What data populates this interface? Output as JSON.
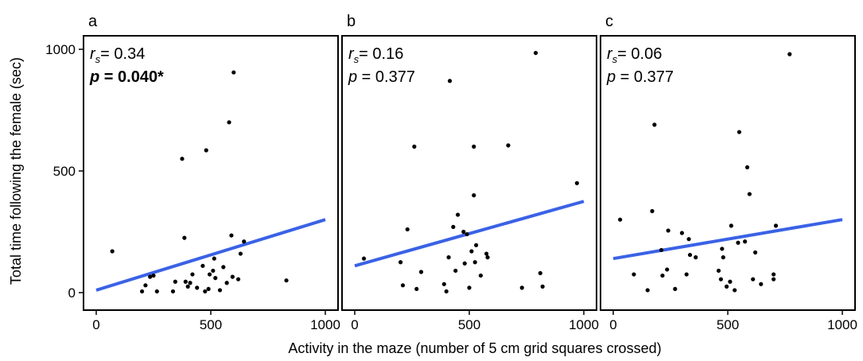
{
  "figure": {
    "ylabel": "Total time following the female (sec)",
    "xlabel": "Activity in the maze (number of 5 cm grid squares crossed)"
  },
  "chart_data": [
    {
      "type": "scatter",
      "panel": "a",
      "xlim": [
        0,
        1000
      ],
      "ylim": [
        0,
        1000
      ],
      "xticks": [
        "0",
        "500",
        "1000"
      ],
      "yticks": [
        "0",
        "500",
        "1000"
      ],
      "rs_label": "r",
      "rs_sub": "s",
      "rs_value": "= 0.34",
      "p_label": "p",
      "p_value": " = 0.040*",
      "p_bold": true,
      "fit": [
        [
          0,
          10
        ],
        [
          1000,
          300
        ]
      ],
      "points": [
        [
          70,
          170
        ],
        [
          200,
          5
        ],
        [
          215,
          30
        ],
        [
          235,
          65
        ],
        [
          250,
          70
        ],
        [
          265,
          5
        ],
        [
          335,
          5
        ],
        [
          345,
          45
        ],
        [
          375,
          550
        ],
        [
          385,
          225
        ],
        [
          390,
          45
        ],
        [
          400,
          25
        ],
        [
          410,
          40
        ],
        [
          420,
          75
        ],
        [
          440,
          20
        ],
        [
          465,
          110
        ],
        [
          475,
          5
        ],
        [
          480,
          585
        ],
        [
          490,
          15
        ],
        [
          495,
          75
        ],
        [
          510,
          90
        ],
        [
          515,
          140
        ],
        [
          520,
          60
        ],
        [
          540,
          10
        ],
        [
          555,
          105
        ],
        [
          570,
          40
        ],
        [
          580,
          700
        ],
        [
          590,
          235
        ],
        [
          595,
          65
        ],
        [
          600,
          905
        ],
        [
          620,
          55
        ],
        [
          630,
          160
        ],
        [
          645,
          210
        ],
        [
          830,
          50
        ]
      ]
    },
    {
      "type": "scatter",
      "panel": "b",
      "xlim": [
        0,
        1000
      ],
      "ylim": [
        0,
        1000
      ],
      "xticks": [
        "0",
        "500",
        "1000"
      ],
      "yticks": [],
      "rs_label": "r",
      "rs_sub": "s",
      "rs_value": "= 0.16",
      "p_label": "p",
      "p_value": " = 0.377",
      "p_bold": false,
      "fit": [
        [
          0,
          110
        ],
        [
          1000,
          375
        ]
      ],
      "points": [
        [
          40,
          140
        ],
        [
          200,
          125
        ],
        [
          210,
          30
        ],
        [
          230,
          260
        ],
        [
          260,
          600
        ],
        [
          270,
          15
        ],
        [
          290,
          85
        ],
        [
          390,
          35
        ],
        [
          400,
          5
        ],
        [
          410,
          145
        ],
        [
          415,
          870
        ],
        [
          430,
          270
        ],
        [
          440,
          90
        ],
        [
          450,
          320
        ],
        [
          475,
          250
        ],
        [
          480,
          120
        ],
        [
          490,
          240
        ],
        [
          500,
          20
        ],
        [
          510,
          170
        ],
        [
          520,
          600
        ],
        [
          520,
          400
        ],
        [
          525,
          125
        ],
        [
          530,
          195
        ],
        [
          550,
          70
        ],
        [
          575,
          160
        ],
        [
          580,
          145
        ],
        [
          670,
          605
        ],
        [
          730,
          20
        ],
        [
          790,
          985
        ],
        [
          810,
          80
        ],
        [
          820,
          25
        ],
        [
          970,
          450
        ]
      ]
    },
    {
      "type": "scatter",
      "panel": "c",
      "xlim": [
        0,
        1000
      ],
      "ylim": [
        0,
        1000
      ],
      "xticks": [
        "0",
        "500",
        "1000"
      ],
      "yticks": [],
      "rs_label": "r",
      "rs_sub": "s",
      "rs_value": "= 0.06",
      "p_label": "p",
      "p_value": " = 0.377",
      "p_bold": false,
      "fit": [
        [
          0,
          140
        ],
        [
          1000,
          300
        ]
      ],
      "points": [
        [
          30,
          300
        ],
        [
          90,
          75
        ],
        [
          150,
          10
        ],
        [
          170,
          335
        ],
        [
          180,
          690
        ],
        [
          210,
          175
        ],
        [
          215,
          70
        ],
        [
          235,
          95
        ],
        [
          240,
          255
        ],
        [
          270,
          15
        ],
        [
          300,
          245
        ],
        [
          320,
          75
        ],
        [
          330,
          220
        ],
        [
          335,
          155
        ],
        [
          360,
          145
        ],
        [
          460,
          90
        ],
        [
          470,
          55
        ],
        [
          475,
          180
        ],
        [
          480,
          145
        ],
        [
          495,
          25
        ],
        [
          510,
          45
        ],
        [
          515,
          275
        ],
        [
          530,
          10
        ],
        [
          545,
          205
        ],
        [
          550,
          660
        ],
        [
          575,
          210
        ],
        [
          585,
          515
        ],
        [
          595,
          405
        ],
        [
          610,
          55
        ],
        [
          620,
          165
        ],
        [
          645,
          35
        ],
        [
          700,
          55
        ],
        [
          700,
          75
        ],
        [
          710,
          275
        ],
        [
          770,
          980
        ]
      ]
    }
  ]
}
